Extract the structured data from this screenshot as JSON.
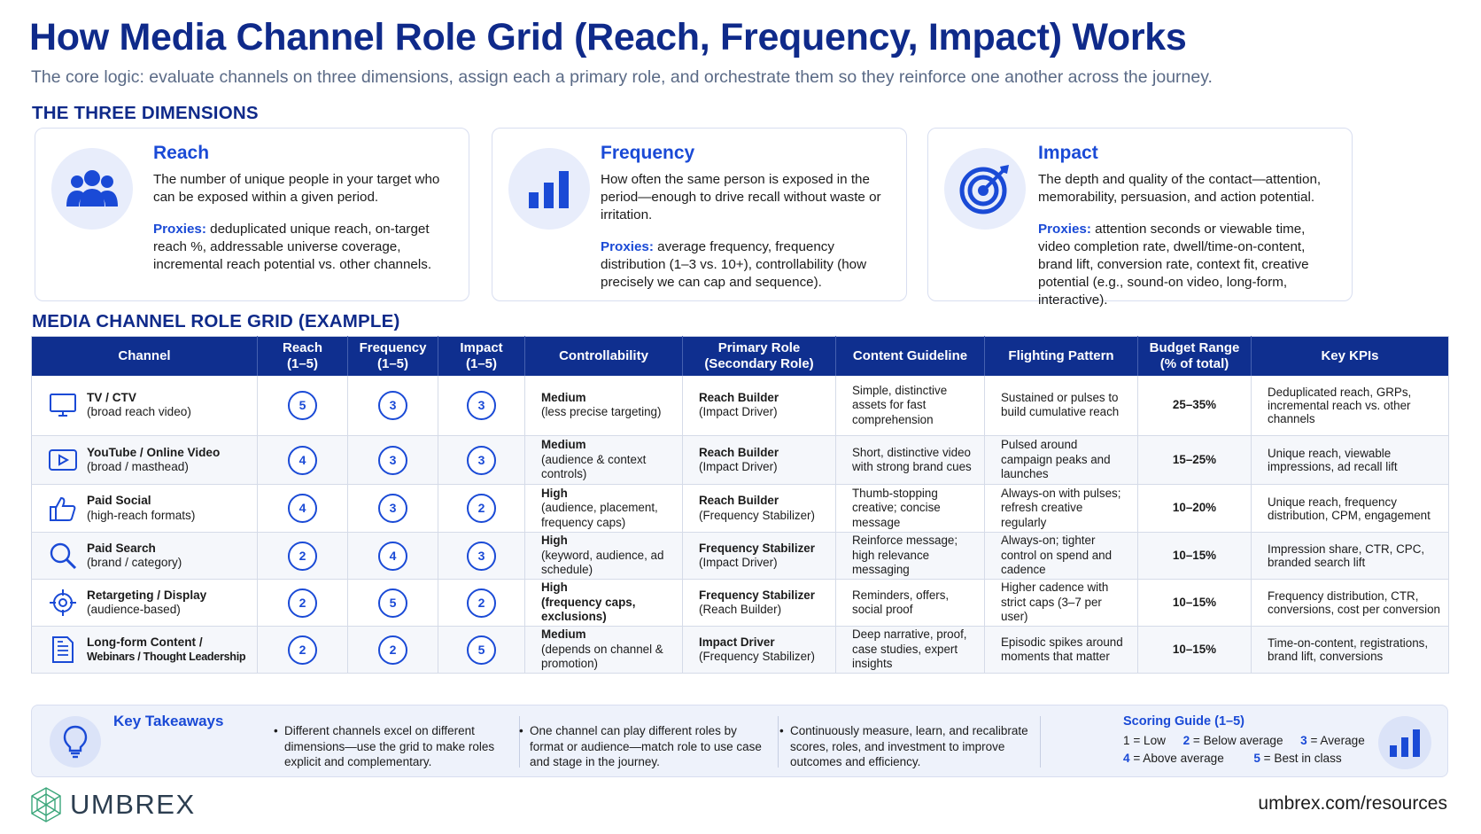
{
  "title": "How Media Channel Role Grid (Reach, Frequency, Impact) Works",
  "subtitle": "The core logic: evaluate channels on three dimensions, assign each a primary role, and orchestrate them so they reinforce one another across the journey.",
  "dimensions_heading": "THE THREE DIMENSIONS",
  "dimensions": [
    {
      "icon": "people-icon",
      "title": "Reach",
      "definition": "The number of unique people in your target who can be exposed within a given period.",
      "proxies_label": "Proxies:",
      "proxies": " deduplicated unique reach, on-target reach %, addressable universe coverage, incremental reach potential vs. other channels."
    },
    {
      "icon": "bar-chart-icon",
      "title": "Frequency",
      "definition": "How often the same person is exposed in the period—enough to drive recall without waste or irritation.",
      "proxies_label": "Proxies:",
      "proxies": " average frequency, frequency distribution (1–3 vs. 10+), controllability (how precisely we can cap and sequence)."
    },
    {
      "icon": "target-icon",
      "title": "Impact",
      "definition": "The depth and quality of the contact—attention, memorability, persuasion, and action potential.",
      "proxies_label": "Proxies:",
      "proxies": " attention seconds or viewable time, video completion rate, dwell/time-on-content, brand lift, conversion rate, context fit, creative potential (e.g., sound-on video, long-form, interactive)."
    }
  ],
  "grid_heading": "MEDIA CHANNEL ROLE GRID (EXAMPLE)",
  "table": {
    "headers": [
      "Channel",
      "Reach\n(1–5)",
      "Frequency\n(1–5)",
      "Impact\n(1–5)",
      "Controllability",
      "Primary Role\n(Secondary Role)",
      "Content Guideline",
      "Flighting Pattern",
      "Budget Range\n(% of total)",
      "Key KPIs"
    ],
    "rows": [
      {
        "icon": "tv-icon",
        "channel": "TV / CTV",
        "channel_sub": "(broad reach video)",
        "reach": "5",
        "frequency": "3",
        "impact": "3",
        "ctrl_level": "Medium",
        "ctrl_detail": "(less precise targeting)",
        "role_primary": "Reach Builder",
        "role_secondary": "(Impact Driver)",
        "content": "Simple, distinctive assets for fast comprehension",
        "flighting": "Sustained or pulses to build cumulative reach",
        "budget": "25–35%",
        "kpis": "Deduplicated reach, GRPs, incremental reach vs. other channels"
      },
      {
        "icon": "video-play-icon",
        "channel": "YouTube / Online Video",
        "channel_sub": "(broad / masthead)",
        "reach": "4",
        "frequency": "3",
        "impact": "3",
        "ctrl_level": "Medium",
        "ctrl_detail": "(audience & context controls)",
        "role_primary": "Reach Builder",
        "role_secondary": "(Impact Driver)",
        "content": "Short, distinctive video with strong brand cues",
        "flighting": "Pulsed around campaign peaks and launches",
        "budget": "15–25%",
        "kpis": "Unique reach, viewable impressions, ad recall lift"
      },
      {
        "icon": "thumbs-up-icon",
        "channel": "Paid Social",
        "channel_sub": "(high-reach formats)",
        "reach": "4",
        "frequency": "3",
        "impact": "2",
        "ctrl_level": "High",
        "ctrl_detail": "(audience, placement, frequency caps)",
        "role_primary": "Reach Builder",
        "role_secondary": "(Frequency Stabilizer)",
        "content": "Thumb-stopping creative; concise message",
        "flighting": "Always-on with pulses; refresh creative regularly",
        "budget": "10–20%",
        "kpis": "Unique reach, frequency distribution, CPM, engagement"
      },
      {
        "icon": "search-icon",
        "channel": "Paid Search",
        "channel_sub": "(brand / category)",
        "reach": "2",
        "frequency": "4",
        "impact": "3",
        "ctrl_level": "High",
        "ctrl_detail": "(keyword, audience, ad schedule)",
        "role_primary": "Frequency Stabilizer",
        "role_secondary": "(Impact Driver)",
        "content": "Reinforce message; high relevance messaging",
        "flighting": "Always-on; tighter control on spend and cadence",
        "budget": "10–15%",
        "kpis": "Impression share, CTR, CPC, branded search lift"
      },
      {
        "icon": "crosshair-icon",
        "channel": "Retargeting / Display",
        "channel_sub": "(audience-based)",
        "reach": "2",
        "frequency": "5",
        "impact": "2",
        "ctrl_level": "High",
        "ctrl_detail": "(frequency caps, exclusions)",
        "role_primary": "Frequency Stabilizer",
        "role_secondary": "(Reach Builder)",
        "content": "Reminders, offers, social proof",
        "flighting": "Higher cadence with strict caps (3–7 per user)",
        "budget": "10–15%",
        "kpis": "Frequency distribution, CTR, conversions, cost per conversion"
      },
      {
        "icon": "document-icon",
        "channel": "Long-form Content /",
        "channel_sub": "Webinars / Thought Leadership",
        "reach": "2",
        "frequency": "2",
        "impact": "5",
        "ctrl_level": "Medium",
        "ctrl_detail": "(depends on channel & promotion)",
        "role_primary": "Impact Driver",
        "role_secondary": "(Frequency Stabilizer)",
        "content": "Deep narrative, proof, case studies, expert insights",
        "flighting": "Episodic spikes around moments that matter",
        "budget": "10–15%",
        "kpis": "Time-on-content, registrations, brand lift, conversions"
      }
    ]
  },
  "takeaways": {
    "title": "Key Takeaways",
    "points": [
      "Different channels excel on different dimensions—use the grid to make roles explicit and complementary.",
      "One channel can play different roles by format or audience—match role to use case and stage in the journey.",
      "Continuously measure, learn, and recalibrate scores, roles, and investment to improve outcomes and efficiency."
    ],
    "bullet": "•"
  },
  "scoring_guide": {
    "title": "Scoring Guide (1–5)",
    "items": [
      {
        "num": "1",
        "label": " = Low"
      },
      {
        "num": "2",
        "label": " = Below average"
      },
      {
        "num": "3",
        "label": " = Average"
      },
      {
        "num": "4",
        "label": " = Above average"
      },
      {
        "num": "5",
        "label": " = Best in class"
      }
    ]
  },
  "brand": "UMBREX",
  "footer_url": "umbrex.com/resources",
  "colors": {
    "navy": "#0f2a8a",
    "accent_blue": "#1a4ad6",
    "header_bg": "#0f2f8f",
    "icon_bg": "#e8edfb",
    "brand_green": "#3aa67a"
  }
}
